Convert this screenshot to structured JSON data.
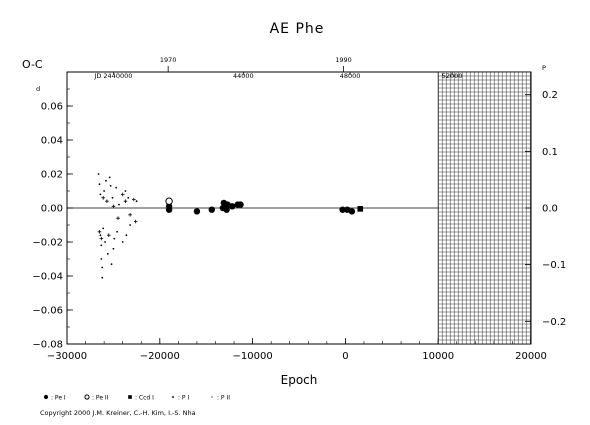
{
  "chart_data": {
    "type": "scatter",
    "title": "AE Phe",
    "ylabel": "O-C",
    "ylabel_day_superscript": "d",
    "xlabel": "Epoch",
    "xlim": [
      -30000,
      20000
    ],
    "ylim": [
      -0.08,
      0.08
    ],
    "x_ticks": [
      -30000,
      -20000,
      -10000,
      0,
      10000,
      20000
    ],
    "x_tick_labels": [
      "−30000",
      "−20000",
      "−10000",
      "0",
      "10000",
      "20000"
    ],
    "y_ticks": [
      -0.08,
      -0.06,
      -0.04,
      -0.02,
      0.0,
      0.02,
      0.04,
      0.06
    ],
    "y_tick_labels": [
      "−0.08",
      "−0.06",
      "−0.04",
      "−0.02",
      "0.00",
      "0.02",
      "0.04",
      "0.06"
    ],
    "right_ticks": [
      -0.2,
      -0.1,
      0.0,
      0.1,
      0.2
    ],
    "right_tick_labels": [
      "−0.2",
      "−0.1",
      "0.0",
      "0.1",
      "0.2"
    ],
    "right_top_superscript": "P",
    "top_year_ticks": [
      {
        "epoch": -19100,
        "label": "1970"
      },
      {
        "epoch": -200,
        "label": "1990"
      }
    ],
    "jd_labels": [
      {
        "epoch": -25000,
        "label": "JD 2440000"
      },
      {
        "epoch": -11000,
        "label": "44000"
      },
      {
        "epoch": 500,
        "label": "48000"
      },
      {
        "epoch": 11500,
        "label": "52000"
      }
    ],
    "hatched_region": {
      "x_from": 10000,
      "x_to": 20000
    },
    "series": [
      {
        "name": ": Pe I",
        "marker": "filled-circle",
        "points": [
          [
            -19000,
            0.001
          ],
          [
            -19000,
            -0.001
          ],
          [
            -16000,
            -0.002
          ],
          [
            -14400,
            -0.001
          ],
          [
            -13200,
            0.0
          ],
          [
            -13100,
            0.003
          ],
          [
            -13000,
            0.001
          ],
          [
            -12900,
            0.0
          ],
          [
            -12800,
            -0.001
          ],
          [
            -12700,
            0.002
          ],
          [
            -12200,
            0.001
          ],
          [
            -11600,
            0.002
          ],
          [
            -11300,
            0.002
          ],
          [
            -300,
            -0.001
          ],
          [
            200,
            -0.001
          ],
          [
            700,
            -0.002
          ]
        ]
      },
      {
        "name": ": Pe II",
        "marker": "open-circle",
        "points": [
          [
            -19000,
            0.004
          ]
        ]
      },
      {
        "name": ": Ccd I",
        "marker": "filled-square",
        "points": [
          [
            1600,
            -0.0005
          ]
        ]
      },
      {
        "name": ": P I",
        "marker": "plus",
        "points": [
          [
            -26500,
            -0.014
          ],
          [
            -26300,
            -0.018
          ],
          [
            -26100,
            0.006
          ],
          [
            -25700,
            0.004
          ],
          [
            -25500,
            -0.016
          ],
          [
            -25000,
            0.001
          ],
          [
            -24500,
            -0.006
          ],
          [
            -24000,
            0.008
          ],
          [
            -23700,
            0.004
          ],
          [
            -23200,
            -0.004
          ],
          [
            -22800,
            0.005
          ],
          [
            -22600,
            -0.008
          ]
        ]
      },
      {
        "name": ": P II",
        "marker": "dot",
        "points": [
          [
            -26600,
            0.02
          ],
          [
            -26500,
            0.014
          ],
          [
            -26400,
            0.008
          ],
          [
            -26400,
            -0.016
          ],
          [
            -26300,
            -0.022
          ],
          [
            -26300,
            -0.03
          ],
          [
            -26200,
            -0.035
          ],
          [
            -26200,
            -0.041
          ],
          [
            -26100,
            -0.012
          ],
          [
            -26000,
            0.01
          ],
          [
            -25900,
            -0.02
          ],
          [
            -25800,
            0.016
          ],
          [
            -25600,
            -0.027
          ],
          [
            -25400,
            0.018
          ],
          [
            -25300,
            0.013
          ],
          [
            -25200,
            -0.033
          ],
          [
            -25100,
            0.006
          ],
          [
            -25000,
            -0.024
          ],
          [
            -24900,
            -0.018
          ],
          [
            -24700,
            0.012
          ],
          [
            -24600,
            -0.014
          ],
          [
            -24400,
            0.002
          ],
          [
            -24000,
            -0.02
          ],
          [
            -23700,
            0.01
          ],
          [
            -23600,
            -0.016
          ],
          [
            -23400,
            0.006
          ],
          [
            -23200,
            -0.01
          ],
          [
            -22500,
            0.004
          ]
        ]
      }
    ],
    "copyright": "Copyright 2000 J.M. Kreiner, C.-H. Kim, I.-S. Nha"
  }
}
